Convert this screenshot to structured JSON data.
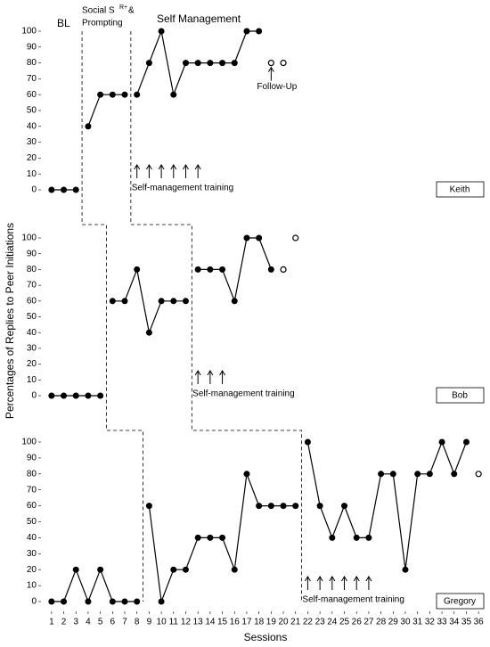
{
  "ylabel": "Percentages of Replies to Peer Initiations",
  "xlabel": "Sessions",
  "phase_labels": {
    "baseline": "BL",
    "social": "Social S",
    "social_sup": "R+",
    "social_rest": "&",
    "social_line2": "Prompting",
    "self_management": "Self Management"
  },
  "chart_data": [
    {
      "type": "line",
      "name": "Keith",
      "ylim": [
        0,
        100
      ],
      "yticks": [
        0,
        10,
        20,
        30,
        40,
        50,
        60,
        70,
        80,
        90,
        100
      ],
      "phases": [
        {
          "x": [
            1,
            2,
            3
          ],
          "values": [
            0,
            0,
            0
          ]
        },
        {
          "x": [
            4,
            5,
            6,
            7
          ],
          "values": [
            40,
            60,
            60,
            60
          ]
        },
        {
          "x": [
            8,
            9,
            10,
            11,
            12,
            13,
            14,
            15,
            16,
            17,
            18
          ],
          "values": [
            60,
            80,
            100,
            60,
            80,
            80,
            80,
            80,
            80,
            100,
            100
          ]
        }
      ],
      "follow_up": {
        "x": [
          19,
          20
        ],
        "values": [
          80,
          80
        ]
      },
      "follow_up_label": "Follow-Up",
      "training_sessions": [
        8,
        9,
        10,
        11,
        12,
        13
      ],
      "training_label": "Self-management training"
    },
    {
      "type": "line",
      "name": "Bob",
      "ylim": [
        0,
        100
      ],
      "yticks": [
        0,
        10,
        20,
        30,
        40,
        50,
        60,
        70,
        80,
        90,
        100
      ],
      "phases": [
        {
          "x": [
            1,
            2,
            3,
            4,
            5
          ],
          "values": [
            0,
            0,
            0,
            0,
            0
          ]
        },
        {
          "x": [
            6,
            7,
            8,
            9,
            10,
            11,
            12
          ],
          "values": [
            60,
            60,
            80,
            40,
            60,
            60,
            60
          ]
        },
        {
          "x": [
            13,
            14,
            15,
            16,
            17,
            18,
            19
          ],
          "values": [
            80,
            80,
            80,
            60,
            100,
            100,
            80
          ]
        }
      ],
      "follow_up": {
        "x": [
          20,
          21
        ],
        "values": [
          80,
          100
        ]
      },
      "training_sessions": [
        13,
        14,
        15
      ],
      "training_label": "Self-management training"
    },
    {
      "type": "line",
      "name": "Gregory",
      "ylim": [
        0,
        100
      ],
      "yticks": [
        0,
        10,
        20,
        30,
        40,
        50,
        60,
        70,
        80,
        90,
        100
      ],
      "xlim": [
        0.5,
        36.5
      ],
      "xticks": [
        1,
        2,
        3,
        4,
        5,
        6,
        7,
        8,
        9,
        10,
        11,
        12,
        13,
        14,
        15,
        16,
        17,
        18,
        19,
        20,
        21,
        22,
        23,
        24,
        25,
        26,
        27,
        28,
        29,
        30,
        31,
        32,
        33,
        34,
        35,
        36
      ],
      "phases": [
        {
          "x": [
            1,
            2,
            3,
            4,
            5,
            6,
            7,
            8
          ],
          "values": [
            0,
            0,
            20,
            0,
            20,
            0,
            0,
            0
          ]
        },
        {
          "x": [
            9,
            10,
            11,
            12,
            13,
            14,
            15,
            16,
            17,
            18,
            19,
            20,
            21
          ],
          "values": [
            60,
            0,
            20,
            20,
            40,
            40,
            40,
            20,
            80,
            60,
            60,
            60,
            60
          ]
        },
        {
          "x": [
            22,
            23,
            24,
            25,
            26,
            27,
            28,
            29,
            30,
            31,
            32,
            33,
            34,
            35
          ],
          "values": [
            100,
            60,
            40,
            60,
            40,
            40,
            80,
            80,
            20,
            80,
            80,
            100,
            80,
            100
          ]
        }
      ],
      "follow_up": {
        "x": [
          36
        ],
        "values": [
          80
        ]
      },
      "training_sessions": [
        22,
        23,
        24,
        25,
        26,
        27
      ],
      "training_label": "Self-management training"
    }
  ]
}
